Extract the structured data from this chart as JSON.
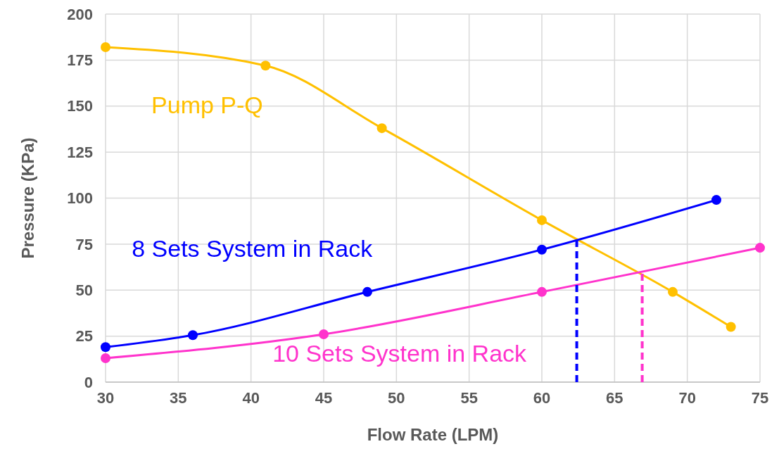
{
  "chart_data": {
    "type": "line",
    "xlabel": "Flow Rate (LPM)",
    "ylabel": "Pressure (KPa)",
    "xlim": [
      30,
      75
    ],
    "xticks": [
      30,
      35,
      40,
      45,
      50,
      55,
      60,
      65,
      70,
      75
    ],
    "ylim": [
      0,
      200
    ],
    "yticks": [
      0,
      25,
      50,
      75,
      100,
      125,
      150,
      175,
      200
    ],
    "grid": true,
    "marker": "circle",
    "line_style": "solid",
    "series": [
      {
        "name": "Pump P-Q",
        "color": "#ffc000",
        "x": [
          30,
          41,
          49,
          60,
          69,
          73
        ],
        "values": [
          182,
          172,
          138,
          88,
          49,
          30
        ]
      },
      {
        "name": "8 Sets System in Rack",
        "color": "#0000ff",
        "x": [
          30,
          36,
          48,
          60,
          72
        ],
        "values": [
          19,
          25.5,
          49,
          72,
          99
        ]
      },
      {
        "name": "10 Sets System in Rack",
        "color": "#ff33cc",
        "x": [
          30,
          45,
          60,
          75
        ],
        "values": [
          13,
          26,
          49,
          73
        ]
      },
      {
        "color": "#0000ff",
        "x": [
          62.4,
          62.4
        ],
        "values": [
          0,
          77
        ],
        "line_style": "dashed",
        "marker": "none"
      },
      {
        "color": "#ff33cc",
        "x": [
          66.9,
          66.9
        ],
        "values": [
          0,
          60
        ],
        "line_style": "dashed",
        "marker": "none"
      }
    ]
  }
}
